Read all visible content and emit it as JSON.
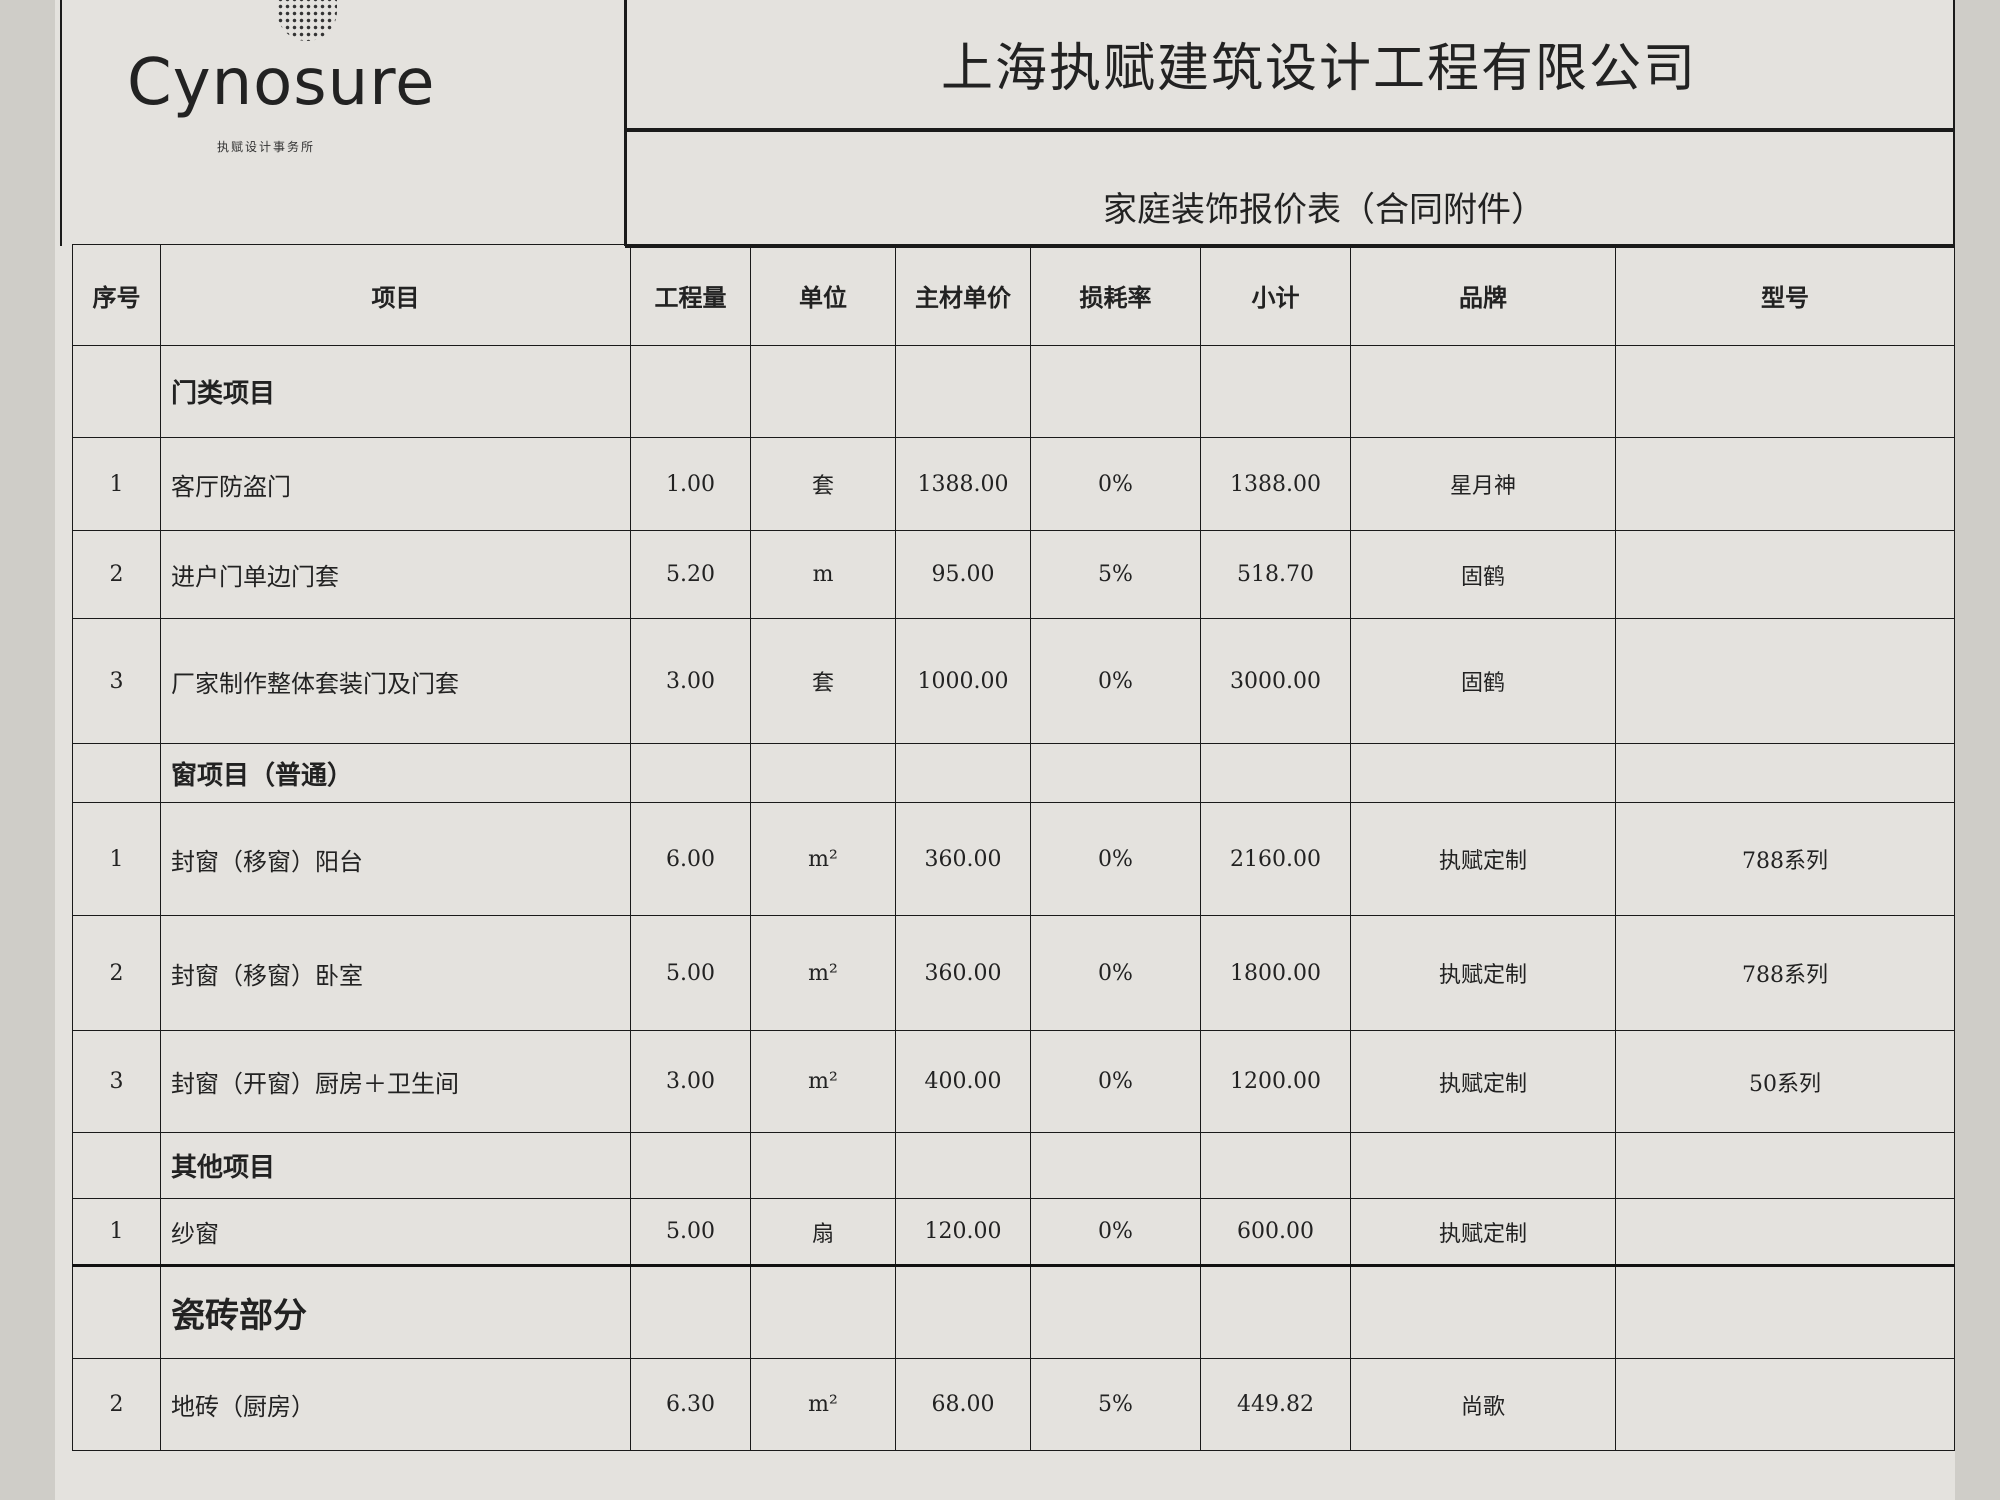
{
  "logo": {
    "brand": "Cynosure",
    "subtitle": "执赋设计事务所"
  },
  "company": "上海执赋建筑设计工程有限公司",
  "doc_title": "家庭装饰报价表（合同附件）",
  "columns": [
    "序号",
    "项目",
    "工程量",
    "单位",
    "主材单价",
    "损耗率",
    "小计",
    "品牌",
    "型号"
  ],
  "rows": [
    {
      "section": "门类项目",
      "big": false
    },
    {
      "no": "1",
      "item": "客厅防盗门",
      "qty": "1.00",
      "unit": "套",
      "price": "1388.00",
      "loss": "0%",
      "subtotal": "1388.00",
      "brand": "星月神",
      "model": ""
    },
    {
      "no": "2",
      "item": "进户门单边门套",
      "qty": "5.20",
      "unit": "m",
      "price": "95.00",
      "loss": "5%",
      "subtotal": "518.70",
      "brand": "固鹤",
      "model": ""
    },
    {
      "no": "3",
      "item": "厂家制作整体套装门及门套",
      "qty": "3.00",
      "unit": "套",
      "price": "1000.00",
      "loss": "0%",
      "subtotal": "3000.00",
      "brand": "固鹤",
      "model": ""
    },
    {
      "section": "窗项目（普通）",
      "big": false
    },
    {
      "no": "1",
      "item": "封窗（移窗）阳台",
      "qty": "6.00",
      "unit": "m²",
      "price": "360.00",
      "loss": "0%",
      "subtotal": "2160.00",
      "brand": "执赋定制",
      "model": "788系列"
    },
    {
      "no": "2",
      "item": "封窗（移窗）卧室",
      "qty": "5.00",
      "unit": "m²",
      "price": "360.00",
      "loss": "0%",
      "subtotal": "1800.00",
      "brand": "执赋定制",
      "model": "788系列"
    },
    {
      "no": "3",
      "item": "封窗（开窗）厨房＋卫生间",
      "qty": "3.00",
      "unit": "m²",
      "price": "400.00",
      "loss": "0%",
      "subtotal": "1200.00",
      "brand": "执赋定制",
      "model": "50系列"
    },
    {
      "section": "其他项目",
      "big": false
    },
    {
      "no": "1",
      "item": "纱窗",
      "qty": "5.00",
      "unit": "扇",
      "price": "120.00",
      "loss": "0%",
      "subtotal": "600.00",
      "brand": "执赋定制",
      "model": ""
    },
    {
      "section": "瓷砖部分",
      "big": true
    },
    {
      "no": "2",
      "item": "地砖（厨房）",
      "qty": "6.30",
      "unit": "m²",
      "price": "68.00",
      "loss": "5%",
      "subtotal": "449.82",
      "brand": "尚歌",
      "model": ""
    }
  ]
}
